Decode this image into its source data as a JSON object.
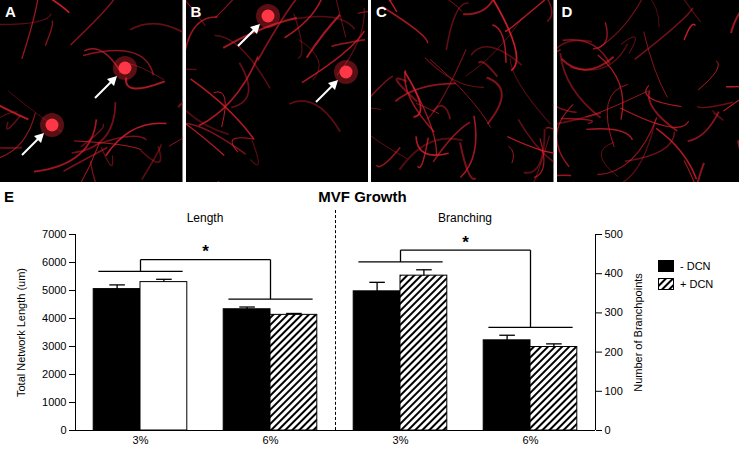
{
  "panels": {
    "labels": [
      "A",
      "B",
      "C",
      "D"
    ]
  },
  "chart_label": "E",
  "chart_data": [
    {
      "type": "bar",
      "title": "MVF Growth",
      "subtitle": "Length",
      "ylabel": "Total Network Length (um)",
      "categories": [
        "3%",
        "6%"
      ],
      "series": [
        {
          "name": "- DCN",
          "color": "#000000",
          "values": [
            5050,
            4330
          ],
          "errors": [
            150,
            80
          ]
        },
        {
          "name": "+ DCN",
          "color": "#000000",
          "colors": [
            "#ffffff",
            "#000000"
          ],
          "marker": "hatch",
          "values": [
            5300,
            4130
          ],
          "errors": [
            100,
            50
          ]
        }
      ],
      "ylim": [
        0,
        7000
      ],
      "yticks": [
        0,
        1000,
        2000,
        3000,
        4000,
        5000,
        6000,
        7000
      ],
      "legend": "right",
      "annotations": [
        "*"
      ]
    },
    {
      "type": "bar",
      "subtitle": "Branching",
      "ylabel": "Number of Branchpoints",
      "categories": [
        "3%",
        "6%"
      ],
      "series": [
        {
          "name": "- DCN",
          "color": "#000000",
          "axis": "y2",
          "values": [
            355,
            230
          ],
          "errors": [
            23,
            13
          ]
        },
        {
          "name": "+ DCN",
          "color": "#000000",
          "marker": "hatch",
          "axis": "y2",
          "values": [
            395,
            213
          ],
          "errors": [
            15,
            8
          ]
        }
      ],
      "y2lim": [
        0,
        500
      ],
      "y2ticks": [
        0,
        100,
        200,
        300,
        400,
        500
      ],
      "annotations": [
        "*"
      ]
    }
  ]
}
